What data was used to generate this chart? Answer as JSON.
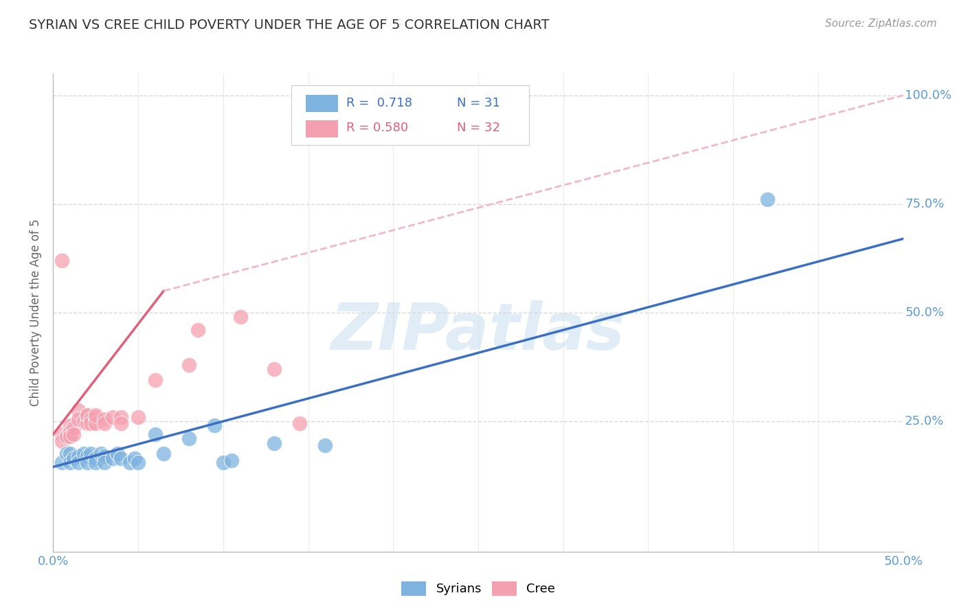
{
  "title": "SYRIAN VS CREE CHILD POVERTY UNDER THE AGE OF 5 CORRELATION CHART",
  "source": "Source: ZipAtlas.com",
  "ylabel": "Child Poverty Under the Age of 5",
  "xlim": [
    0.0,
    0.5
  ],
  "ylim": [
    -0.05,
    1.05
  ],
  "xticks": [
    0.0,
    0.05,
    0.1,
    0.15,
    0.2,
    0.25,
    0.3,
    0.35,
    0.4,
    0.45,
    0.5
  ],
  "xticklabels": [
    "0.0%",
    "",
    "",
    "",
    "",
    "",
    "",
    "",
    "",
    "",
    "50.0%"
  ],
  "yticks": [
    0.0,
    0.25,
    0.5,
    0.75,
    1.0
  ],
  "yticklabels": [
    "",
    "25.0%",
    "50.0%",
    "75.0%",
    "100.0%"
  ],
  "syrian_color": "#7EB3E0",
  "cree_color": "#F5A0B0",
  "syrian_line_color": "#3A6FC4",
  "cree_line_color": "#E0607A",
  "cree_dash_color": "#F0B8C8",
  "legend_R_syrian": "R =  0.718",
  "legend_N_syrian": "N = 31",
  "legend_R_cree": "R = 0.580",
  "legend_N_cree": "N = 32",
  "watermark": "ZIPatlas",
  "background_color": "#ffffff",
  "grid_color": "#d8d8d8",
  "syrian_points": [
    [
      0.005,
      0.155
    ],
    [
      0.008,
      0.175
    ],
    [
      0.01,
      0.175
    ],
    [
      0.01,
      0.155
    ],
    [
      0.012,
      0.165
    ],
    [
      0.015,
      0.17
    ],
    [
      0.015,
      0.155
    ],
    [
      0.018,
      0.175
    ],
    [
      0.02,
      0.17
    ],
    [
      0.02,
      0.155
    ],
    [
      0.022,
      0.175
    ],
    [
      0.025,
      0.165
    ],
    [
      0.025,
      0.155
    ],
    [
      0.028,
      0.175
    ],
    [
      0.03,
      0.17
    ],
    [
      0.03,
      0.155
    ],
    [
      0.035,
      0.165
    ],
    [
      0.038,
      0.175
    ],
    [
      0.04,
      0.165
    ],
    [
      0.045,
      0.155
    ],
    [
      0.048,
      0.165
    ],
    [
      0.05,
      0.155
    ],
    [
      0.06,
      0.22
    ],
    [
      0.065,
      0.175
    ],
    [
      0.08,
      0.21
    ],
    [
      0.095,
      0.24
    ],
    [
      0.1,
      0.155
    ],
    [
      0.105,
      0.16
    ],
    [
      0.13,
      0.2
    ],
    [
      0.16,
      0.195
    ],
    [
      0.42,
      0.76
    ]
  ],
  "cree_points": [
    [
      0.005,
      0.22
    ],
    [
      0.005,
      0.205
    ],
    [
      0.008,
      0.215
    ],
    [
      0.01,
      0.24
    ],
    [
      0.01,
      0.225
    ],
    [
      0.01,
      0.215
    ],
    [
      0.012,
      0.235
    ],
    [
      0.012,
      0.22
    ],
    [
      0.015,
      0.275
    ],
    [
      0.015,
      0.255
    ],
    [
      0.018,
      0.25
    ],
    [
      0.02,
      0.265
    ],
    [
      0.02,
      0.245
    ],
    [
      0.02,
      0.265
    ],
    [
      0.022,
      0.255
    ],
    [
      0.022,
      0.245
    ],
    [
      0.025,
      0.26
    ],
    [
      0.025,
      0.245
    ],
    [
      0.025,
      0.265
    ],
    [
      0.03,
      0.255
    ],
    [
      0.03,
      0.245
    ],
    [
      0.035,
      0.26
    ],
    [
      0.04,
      0.26
    ],
    [
      0.04,
      0.245
    ],
    [
      0.05,
      0.26
    ],
    [
      0.06,
      0.345
    ],
    [
      0.08,
      0.38
    ],
    [
      0.085,
      0.46
    ],
    [
      0.11,
      0.49
    ],
    [
      0.13,
      0.37
    ],
    [
      0.005,
      0.62
    ],
    [
      0.145,
      0.245
    ]
  ],
  "syrian_line": [
    [
      0.0,
      0.145
    ],
    [
      0.5,
      0.67
    ]
  ],
  "cree_line_solid": [
    [
      0.0,
      0.22
    ],
    [
      0.065,
      0.55
    ]
  ],
  "cree_line_dash": [
    [
      0.065,
      0.55
    ],
    [
      0.5,
      1.0
    ]
  ]
}
